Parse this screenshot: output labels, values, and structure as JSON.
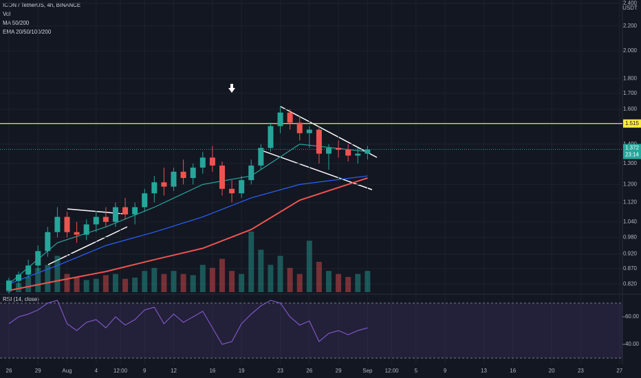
{
  "chart_data": {
    "type": "candlestick",
    "title": "ICON / TetherUS, 4h, BINANCE",
    "indicators": [
      "Vol",
      "MA 50/200",
      "EMA 20/50/100/200"
    ],
    "y_unit": "USDT",
    "log_scale": true,
    "x": [
      0,
      1,
      2,
      3,
      4,
      5,
      6,
      7,
      8,
      9,
      10,
      11,
      12,
      13,
      14,
      15,
      16,
      17,
      18,
      19,
      20,
      21,
      22,
      23,
      24,
      25,
      26,
      27,
      28,
      29,
      30,
      31,
      32,
      33,
      34,
      35,
      36,
      37
    ],
    "open": [
      0.8,
      0.83,
      0.85,
      0.88,
      0.93,
      1.0,
      1.06,
      1.0,
      0.99,
      1.03,
      1.06,
      1.04,
      1.1,
      1.07,
      1.1,
      1.16,
      1.21,
      1.19,
      1.26,
      1.23,
      1.28,
      1.33,
      1.29,
      1.18,
      1.16,
      1.22,
      1.29,
      1.38,
      1.5,
      1.58,
      1.52,
      1.46,
      1.48,
      1.35,
      1.38,
      1.37,
      1.34,
      1.35
    ],
    "high": [
      0.84,
      0.86,
      0.9,
      0.95,
      1.02,
      1.1,
      1.08,
      1.04,
      1.05,
      1.08,
      1.1,
      1.12,
      1.14,
      1.12,
      1.18,
      1.24,
      1.28,
      1.28,
      1.32,
      1.3,
      1.36,
      1.39,
      1.31,
      1.22,
      1.24,
      1.32,
      1.4,
      1.52,
      1.62,
      1.6,
      1.56,
      1.5,
      1.5,
      1.4,
      1.42,
      1.4,
      1.38,
      1.39
    ],
    "low": [
      0.79,
      0.81,
      0.84,
      0.86,
      0.91,
      0.98,
      0.98,
      0.96,
      0.97,
      1.0,
      1.02,
      1.02,
      1.05,
      1.03,
      1.08,
      1.12,
      1.15,
      1.17,
      1.2,
      1.2,
      1.25,
      1.26,
      1.15,
      1.12,
      1.14,
      1.2,
      1.27,
      1.36,
      1.46,
      1.48,
      1.42,
      1.38,
      1.3,
      1.27,
      1.33,
      1.31,
      1.3,
      1.32
    ],
    "close": [
      0.83,
      0.85,
      0.88,
      0.93,
      1.0,
      1.06,
      1.0,
      0.99,
      1.03,
      1.06,
      1.04,
      1.1,
      1.07,
      1.1,
      1.16,
      1.21,
      1.19,
      1.26,
      1.23,
      1.28,
      1.33,
      1.29,
      1.18,
      1.16,
      1.22,
      1.29,
      1.38,
      1.5,
      1.58,
      1.52,
      1.46,
      1.48,
      1.35,
      1.38,
      1.37,
      1.34,
      1.35,
      1.372
    ],
    "volume": [
      20,
      15,
      25,
      40,
      45,
      60,
      30,
      25,
      20,
      22,
      28,
      30,
      22,
      24,
      35,
      40,
      30,
      35,
      30,
      28,
      45,
      40,
      55,
      35,
      30,
      100,
      70,
      45,
      60,
      40,
      30,
      85,
      50,
      35,
      30,
      25,
      30,
      35
    ],
    "up_color": "#26a69a",
    "down_color": "#ef5350",
    "lines": [
      {
        "color": "#ef5350",
        "x": [
          0,
          5,
          10,
          15,
          20,
          25,
          30,
          37
        ],
        "values": [
          0.8,
          0.83,
          0.86,
          0.9,
          0.94,
          1.01,
          1.13,
          1.23
        ]
      },
      {
        "color": "#2962ff",
        "x": [
          0,
          5,
          10,
          15,
          20,
          25,
          30,
          37
        ],
        "values": [
          0.82,
          0.88,
          0.95,
          1.0,
          1.06,
          1.14,
          1.2,
          1.24
        ]
      },
      {
        "color": "#26a69a",
        "x": [
          0,
          5,
          10,
          15,
          20,
          25,
          30,
          37
        ],
        "values": [
          0.82,
          0.96,
          1.02,
          1.1,
          1.2,
          1.24,
          1.4,
          1.36
        ]
      }
    ],
    "hline": {
      "value": 1.515,
      "label": "1.515",
      "color": "#ffeb3b"
    },
    "last_price": {
      "value": 1.372,
      "label": "1.372"
    },
    "countdown": "23:14",
    "xlim": [
      -0.92,
      63.3
    ],
    "ylim": [
      0.795,
      2.43
    ],
    "yticks": [
      {
        "value": 2.4,
        "label": "2.400"
      },
      {
        "value": 2.2,
        "label": "2.200"
      },
      {
        "value": 2.0,
        "label": "2.000"
      },
      {
        "value": 1.8,
        "label": "1.800"
      },
      {
        "value": 1.7,
        "label": "1.700"
      },
      {
        "value": 1.6,
        "label": "1.600"
      },
      {
        "value": 1.4,
        "label": "1.400"
      },
      {
        "value": 1.3,
        "label": "1.300"
      },
      {
        "value": 1.2,
        "label": "1.200"
      },
      {
        "value": 1.12,
        "label": "1.120"
      },
      {
        "value": 1.04,
        "label": "1.040"
      },
      {
        "value": 0.98,
        "label": "0.980"
      },
      {
        "value": 0.92,
        "label": "0.920"
      },
      {
        "value": 0.87,
        "label": "0.870"
      },
      {
        "value": 0.82,
        "label": "0.820"
      }
    ],
    "xticks": [
      {
        "value": 0,
        "label": "26"
      },
      {
        "value": 3,
        "label": "29"
      },
      {
        "value": 6,
        "label": "Aug"
      },
      {
        "value": 9,
        "label": "4"
      },
      {
        "value": 11.5,
        "label": "12:00"
      },
      {
        "value": 14,
        "label": "9"
      },
      {
        "value": 17,
        "label": "12"
      },
      {
        "value": 21,
        "label": "16"
      },
      {
        "value": 24,
        "label": "19"
      },
      {
        "value": 28,
        "label": "23"
      },
      {
        "value": 31,
        "label": "26"
      },
      {
        "value": 34,
        "label": "29"
      },
      {
        "value": 37,
        "label": "Sep"
      },
      {
        "value": 39.5,
        "label": "12:00"
      },
      {
        "value": 42,
        "label": "5"
      },
      {
        "value": 45,
        "label": "9"
      },
      {
        "value": 49,
        "label": "13"
      },
      {
        "value": 52,
        "label": "16"
      },
      {
        "value": 56,
        "label": "20"
      },
      {
        "value": 59,
        "label": "23"
      },
      {
        "value": 63,
        "label": "27"
      }
    ],
    "rsi": {
      "title": "RSI (14, close)",
      "color": "#7e57c2",
      "values": [
        55,
        60,
        62,
        65,
        70,
        72,
        55,
        50,
        56,
        58,
        52,
        60,
        54,
        58,
        65,
        67,
        55,
        62,
        56,
        60,
        64,
        52,
        40,
        42,
        55,
        62,
        68,
        72,
        70,
        60,
        54,
        57,
        42,
        48,
        50,
        47,
        50,
        52
      ],
      "ylim": [
        25.5,
        74.5
      ],
      "yticks": [
        {
          "value": 60,
          "label": "60.00"
        },
        {
          "value": 40,
          "label": "40.00"
        }
      ],
      "bands": [
        70,
        30
      ]
    }
  }
}
